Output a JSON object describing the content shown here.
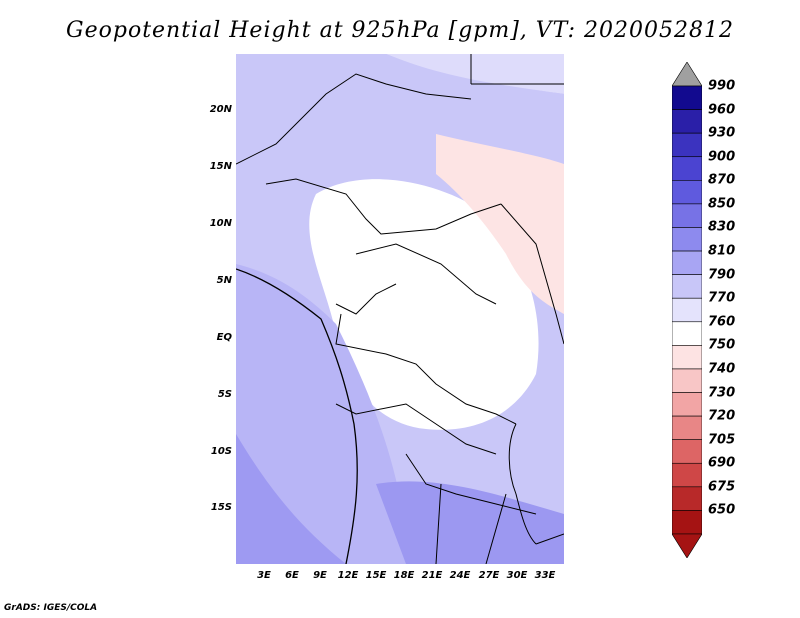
{
  "title": "Geopotential Height at 925hPa [gpm], VT: 2020052812",
  "footer": "GrADS: IGES/COLA",
  "map": {
    "lat_labels": [
      "20N",
      "15N",
      "10N",
      "5N",
      "EQ",
      "5S",
      "10S",
      "15S"
    ],
    "lon_labels": [
      "3E",
      "6E",
      "9E",
      "12E",
      "15E",
      "18E",
      "21E",
      "24E",
      "27E",
      "30E",
      "33E"
    ]
  },
  "colorbar": {
    "labels": [
      "990",
      "960",
      "930",
      "900",
      "870",
      "850",
      "830",
      "810",
      "790",
      "770",
      "760",
      "750",
      "740",
      "730",
      "720",
      "705",
      "690",
      "675",
      "650"
    ],
    "colors": {
      "top_arrow": "#a0a0a0",
      "boxes": [
        "#120a8f",
        "#2a1fa8",
        "#3b33bf",
        "#4b44d1",
        "#5f5ade",
        "#7772e6",
        "#8d8aee",
        "#a8a5f3",
        "#c8c6f8",
        "#e4e3fc",
        "#ffffff",
        "#fde3e3",
        "#f8c6c6",
        "#f2a5a5",
        "#e88686",
        "#dd6565",
        "#cf4747",
        "#b82929",
        "#a51313"
      ],
      "bottom_arrow": "#a51313"
    }
  }
}
